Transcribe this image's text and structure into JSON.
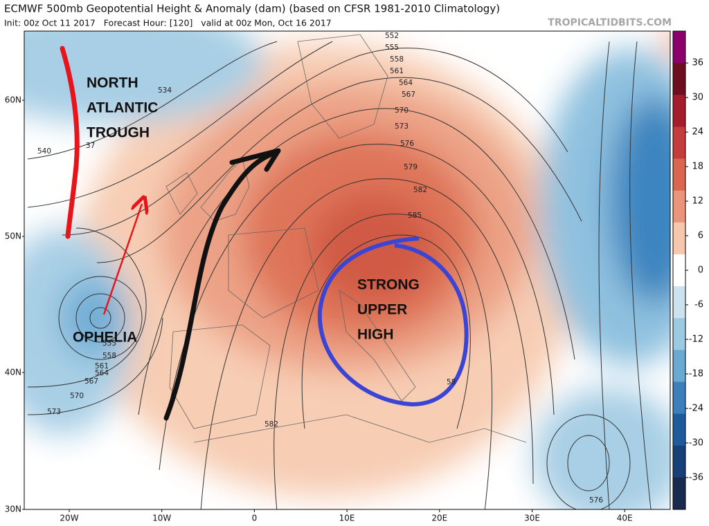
{
  "header": {
    "title": "ECMWF 500mb Geopotential Height & Anomaly (dam) (based on CFSR 1981-2010 Climatology)",
    "subtitle": "Init: 00z Oct 11 2017   Forecast Hour: [120]   valid at 00z Mon, Oct 16 2017",
    "source": "TROPICALTIDBITS.COM"
  },
  "annotations": [
    "NORTH",
    "ATLANTIC",
    "TROUGH",
    "OPHELIA",
    "STRONG",
    "UPPER",
    "HIGH"
  ],
  "lat_labels": [
    "60N",
    "50N",
    "40N",
    "30N"
  ],
  "lon_labels": [
    "20W",
    "10W",
    "0",
    "10E",
    "20E",
    "30E",
    "40E"
  ],
  "contour_labels": [
    "552",
    "555",
    "558",
    "561",
    "564",
    "567",
    "570",
    "573",
    "576",
    "579",
    "582",
    "585",
    "534",
    "540",
    "37",
    "555",
    "558",
    "561",
    "564",
    "567",
    "570",
    "573",
    "582",
    "58",
    "576"
  ],
  "colorbar_ticks": [
    36,
    30,
    24,
    18,
    12,
    6,
    0,
    -6,
    -12,
    -18,
    -24,
    -30,
    -36
  ]
}
